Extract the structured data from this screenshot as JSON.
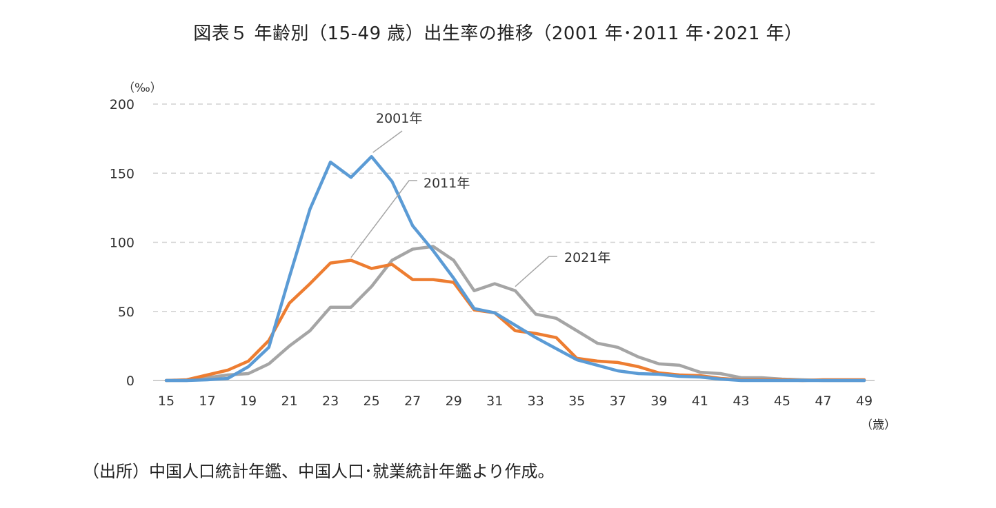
{
  "title": "図表５ 年齢別（15-49 歳）出生率の推移（2001 年･2011 年･2021 年）",
  "source": "（出所）中国人口統計年鑑、中国人口･就業統計年鑑より作成。",
  "chart_data": {
    "type": "line",
    "title": "図表５ 年齢別（15-49 歳）出生率の推移（2001 年･2011 年･2021 年）",
    "ylabel": "（‰）",
    "xlabel": "（歳）",
    "ylim": [
      0,
      200
    ],
    "yticks": [
      0,
      50,
      100,
      150,
      200
    ],
    "xlim": [
      15,
      49
    ],
    "xticks": [
      15,
      17,
      19,
      21,
      23,
      25,
      27,
      29,
      31,
      33,
      35,
      37,
      39,
      41,
      43,
      45,
      47,
      49
    ],
    "grid": true,
    "x": [
      15,
      16,
      17,
      18,
      19,
      20,
      21,
      22,
      23,
      24,
      25,
      26,
      27,
      28,
      29,
      30,
      31,
      32,
      33,
      34,
      35,
      36,
      37,
      38,
      39,
      40,
      41,
      42,
      43,
      44,
      45,
      46,
      47,
      48,
      49
    ],
    "series": [
      {
        "name": "2001年",
        "color": "#5b9bd5",
        "values": [
          0,
          0,
          0.5,
          1.5,
          10,
          24,
          75,
          124,
          158,
          147,
          162,
          144,
          112,
          94,
          74,
          52,
          49,
          40,
          31,
          23,
          15,
          11,
          7,
          5,
          4.5,
          3,
          2.5,
          1,
          0,
          0,
          0,
          0,
          0,
          0,
          0
        ]
      },
      {
        "name": "2011年",
        "color": "#ed7d31",
        "values": [
          0,
          0.5,
          4,
          7.5,
          14,
          29,
          56,
          70,
          85,
          87,
          81,
          84,
          73,
          73,
          71,
          51,
          49,
          36,
          34,
          31,
          16,
          14,
          13,
          10,
          5.5,
          4,
          3.5,
          1.5,
          0.5,
          0.5,
          0.5,
          0,
          0.5,
          0.5,
          0.5
        ]
      },
      {
        "name": "2021年",
        "color": "#a5a5a5",
        "values": [
          0,
          0,
          2,
          4,
          5,
          12,
          25,
          36,
          53,
          53,
          68,
          87,
          95,
          97,
          87,
          65,
          70,
          65,
          48,
          45,
          36,
          27,
          24,
          17,
          12,
          11,
          6,
          5,
          2,
          2,
          1,
          0.5,
          0,
          0,
          0
        ]
      }
    ],
    "annotations": [
      {
        "text": "2001年",
        "series": "2001年"
      },
      {
        "text": "2011年",
        "series": "2011年"
      },
      {
        "text": "2021年",
        "series": "2021年"
      }
    ]
  }
}
